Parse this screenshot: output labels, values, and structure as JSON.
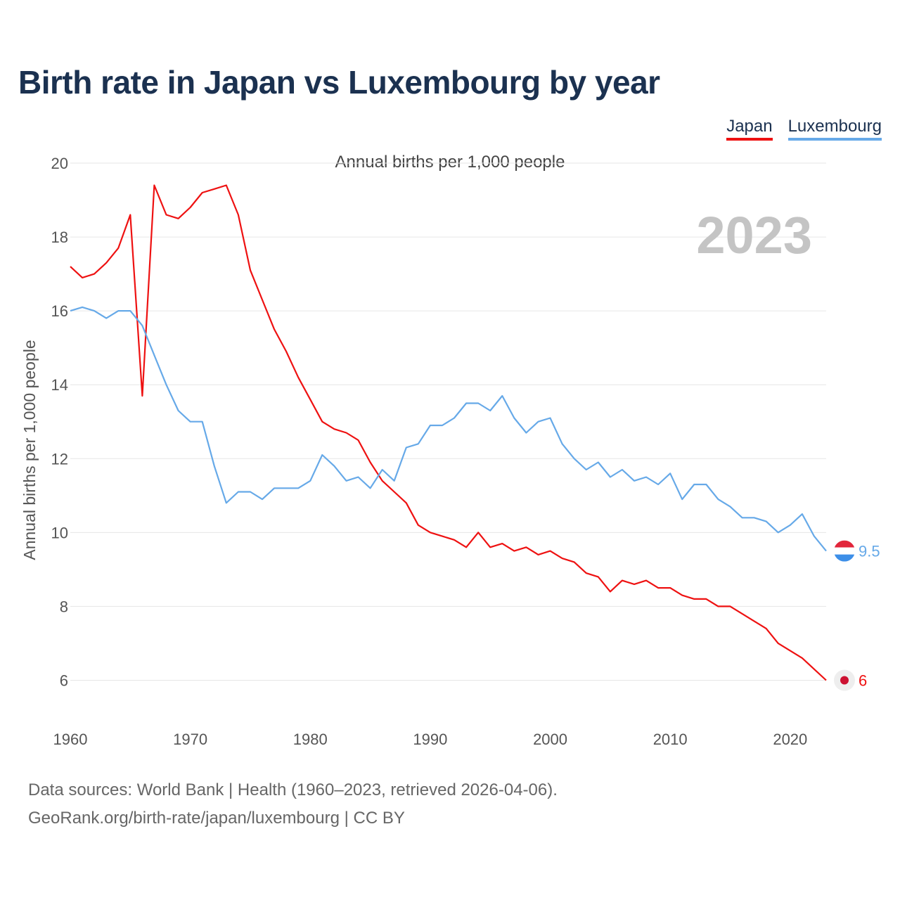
{
  "title": "Birth rate in Japan vs Luxembourg by year",
  "legend": [
    {
      "label": "Japan",
      "color": "#ee1111"
    },
    {
      "label": "Luxembourg",
      "color": "#66a9e8"
    }
  ],
  "footer": {
    "line1": "Data sources: World Bank | Health (1960–2023, retrieved 2026-04-06).",
    "line2": "GeoRank.org/birth-rate/japan/luxembourg | CC BY"
  },
  "chart_data": {
    "type": "line",
    "title": "Annual births per 1,000 people",
    "ylabel": "Annual births per 1,000 people",
    "xlabel": "",
    "year_label": "2023",
    "xlim": [
      1960,
      2023
    ],
    "ylim": [
      5,
      20
    ],
    "yticks": [
      6,
      8,
      10,
      12,
      14,
      16,
      18,
      20
    ],
    "xticks": [
      1960,
      1970,
      1980,
      1990,
      2000,
      2010,
      2020
    ],
    "grid": true,
    "x_start": 1960,
    "series": [
      {
        "name": "Japan",
        "color": "#ee1111",
        "end_label": "6",
        "values": [
          17.2,
          16.9,
          17.0,
          17.3,
          17.7,
          18.6,
          13.7,
          19.4,
          18.6,
          18.5,
          18.8,
          19.2,
          19.3,
          19.4,
          18.6,
          17.1,
          16.3,
          15.5,
          14.9,
          14.2,
          13.6,
          13.0,
          12.8,
          12.7,
          12.5,
          11.9,
          11.4,
          11.1,
          10.8,
          10.2,
          10.0,
          9.9,
          9.8,
          9.6,
          10.0,
          9.6,
          9.7,
          9.5,
          9.6,
          9.4,
          9.5,
          9.3,
          9.2,
          8.9,
          8.8,
          8.4,
          8.7,
          8.6,
          8.7,
          8.5,
          8.5,
          8.3,
          8.2,
          8.2,
          8.0,
          8.0,
          7.8,
          7.6,
          7.4,
          7.0,
          6.8,
          6.6,
          6.3,
          6.0
        ]
      },
      {
        "name": "Luxembourg",
        "color": "#66a9e8",
        "end_label": "9.5",
        "values": [
          16.0,
          16.1,
          16.0,
          15.8,
          16.0,
          16.0,
          15.6,
          14.8,
          14.0,
          13.3,
          13.0,
          13.0,
          11.8,
          10.8,
          11.1,
          11.1,
          10.9,
          11.2,
          11.2,
          11.2,
          11.4,
          12.1,
          11.8,
          11.4,
          11.5,
          11.2,
          11.7,
          11.4,
          12.3,
          12.4,
          12.9,
          12.9,
          13.1,
          13.5,
          13.5,
          13.3,
          13.7,
          13.1,
          12.7,
          13.0,
          13.1,
          12.4,
          12.0,
          11.7,
          11.9,
          11.5,
          11.7,
          11.4,
          11.5,
          11.3,
          11.6,
          10.9,
          11.3,
          11.3,
          10.9,
          10.7,
          10.4,
          10.4,
          10.3,
          10.0,
          10.2,
          10.5,
          9.9,
          9.5
        ]
      }
    ]
  }
}
